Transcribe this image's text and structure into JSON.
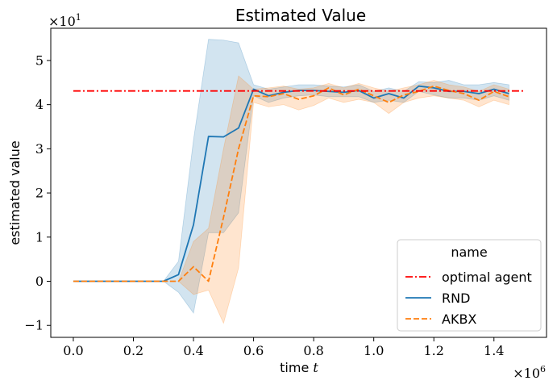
{
  "chart_data": {
    "type": "line",
    "title": "Estimated Value",
    "xlabel": "time t",
    "ylabel": "estimated value",
    "x_scale_note": "×10^6",
    "y_scale_note": "×10^1",
    "xlim": [
      -0.075,
      1.575
    ],
    "ylim": [
      -1.27,
      5.73
    ],
    "x_ticks": [
      0.0,
      0.2,
      0.4,
      0.6,
      0.8,
      1.0,
      1.2,
      1.4
    ],
    "x_tick_labels": [
      "0.0",
      "0.2",
      "0.4",
      "0.6",
      "0.8",
      "1.0",
      "1.2",
      "1.4"
    ],
    "y_ticks": [
      -1,
      0,
      1,
      2,
      3,
      4,
      5
    ],
    "y_tick_labels": [
      "−1",
      "0",
      "1",
      "2",
      "3",
      "4",
      "5"
    ],
    "grid": false,
    "legend": {
      "placement": "lower-right",
      "title": "name",
      "entries": [
        {
          "label": "optimal agent",
          "color": "#ff0000",
          "style": "dashdot"
        },
        {
          "label": "RND",
          "color": "#1f77b4",
          "style": "solid"
        },
        {
          "label": "AKBX",
          "color": "#ff7f0e",
          "style": "dashed"
        }
      ]
    },
    "series": [
      {
        "name": "optimal agent",
        "color": "#ff0000",
        "style": "dashdot",
        "x": [
          0.0,
          1.5
        ],
        "y": [
          4.31,
          4.31
        ]
      },
      {
        "name": "RND",
        "color": "#1f77b4",
        "style": "solid",
        "x": [
          0.0,
          0.05,
          0.1,
          0.15,
          0.2,
          0.25,
          0.3,
          0.35,
          0.4,
          0.45,
          0.5,
          0.55,
          0.6,
          0.65,
          0.7,
          0.75,
          0.8,
          0.85,
          0.9,
          0.95,
          1.0,
          1.05,
          1.1,
          1.15,
          1.2,
          1.25,
          1.3,
          1.35,
          1.4,
          1.45
        ],
        "y": [
          0.0,
          0.0,
          0.0,
          0.0,
          0.0,
          0.0,
          0.0,
          0.15,
          1.28,
          3.28,
          3.27,
          3.47,
          4.35,
          4.2,
          4.28,
          4.32,
          4.32,
          4.3,
          4.28,
          4.32,
          4.15,
          4.25,
          4.15,
          4.42,
          4.38,
          4.3,
          4.3,
          4.25,
          4.35,
          4.25
        ],
        "ci_lower": [
          0.0,
          0.0,
          0.0,
          0.0,
          0.0,
          0.0,
          0.0,
          -0.25,
          -0.72,
          1.1,
          1.1,
          1.55,
          4.2,
          4.05,
          4.15,
          4.2,
          4.22,
          4.18,
          4.18,
          4.18,
          4.05,
          4.1,
          4.05,
          4.3,
          4.22,
          4.15,
          4.15,
          4.1,
          4.2,
          4.1
        ],
        "ci_upper": [
          0.0,
          0.0,
          0.0,
          0.0,
          0.0,
          0.0,
          0.0,
          0.45,
          3.2,
          5.48,
          5.46,
          5.4,
          4.45,
          4.35,
          4.4,
          4.45,
          4.45,
          4.42,
          4.4,
          4.45,
          4.3,
          4.38,
          4.3,
          4.52,
          4.5,
          4.55,
          4.45,
          4.45,
          4.5,
          4.45
        ]
      },
      {
        "name": "AKBX",
        "color": "#ff7f0e",
        "style": "dashed",
        "x": [
          0.0,
          0.05,
          0.1,
          0.15,
          0.2,
          0.25,
          0.3,
          0.35,
          0.4,
          0.45,
          0.5,
          0.55,
          0.6,
          0.65,
          0.7,
          0.75,
          0.8,
          0.85,
          0.9,
          0.95,
          1.0,
          1.05,
          1.1,
          1.15,
          1.2,
          1.25,
          1.3,
          1.35,
          1.4,
          1.45
        ],
        "y": [
          0.0,
          0.0,
          0.0,
          0.0,
          0.0,
          0.0,
          0.0,
          0.0,
          0.33,
          0.0,
          1.45,
          3.0,
          4.2,
          4.18,
          4.25,
          4.12,
          4.2,
          4.38,
          4.22,
          4.35,
          4.2,
          4.05,
          4.22,
          4.3,
          4.42,
          4.32,
          4.25,
          4.1,
          4.3,
          4.18
        ],
        "ci_lower": [
          0.0,
          0.0,
          0.0,
          0.0,
          0.0,
          0.0,
          0.0,
          0.0,
          -0.3,
          -0.2,
          -0.95,
          0.3,
          4.05,
          3.95,
          4.0,
          3.88,
          3.98,
          4.15,
          4.05,
          4.12,
          4.05,
          3.8,
          4.05,
          4.15,
          4.2,
          4.15,
          4.1,
          3.95,
          4.1,
          4.0
        ],
        "ci_upper": [
          0.0,
          0.0,
          0.0,
          0.0,
          0.0,
          0.0,
          0.0,
          0.0,
          0.9,
          1.2,
          3.0,
          4.65,
          4.35,
          4.38,
          4.42,
          4.35,
          4.38,
          4.48,
          4.38,
          4.48,
          4.38,
          4.3,
          4.38,
          4.45,
          4.55,
          4.45,
          4.4,
          4.3,
          4.45,
          4.35
        ]
      }
    ]
  }
}
